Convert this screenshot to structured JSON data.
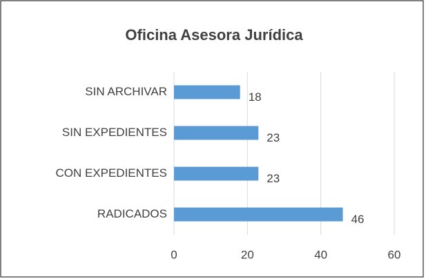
{
  "chart_data": {
    "type": "bar",
    "orientation": "horizontal",
    "title": "Oficina Asesora Jurídica",
    "categories": [
      "SIN ARCHIVAR",
      "SIN EXPEDIENTES",
      "CON EXPEDIENTES",
      "RADICADOS"
    ],
    "values": [
      18,
      23,
      23,
      46
    ],
    "color": "#5b9bd5",
    "xlim": [
      0,
      60
    ],
    "xticks": [
      0,
      20,
      40,
      60
    ],
    "grid": true
  }
}
